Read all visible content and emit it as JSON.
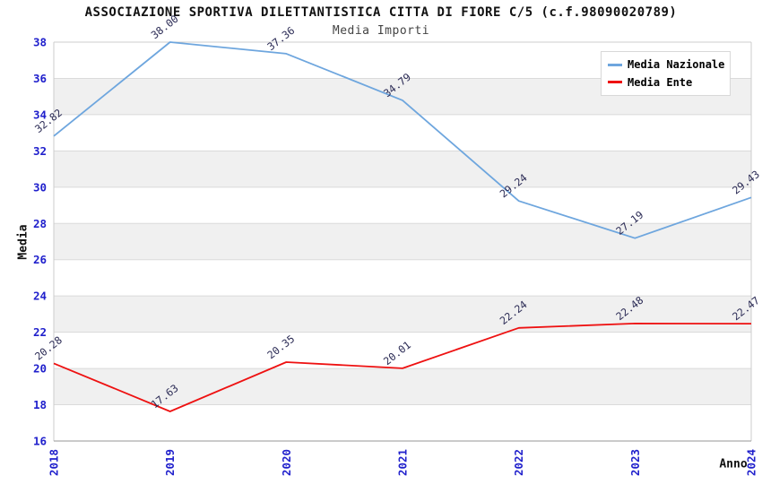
{
  "chart_data": {
    "type": "line",
    "title": "ASSOCIAZIONE SPORTIVA DILETTANTISTICA CITTA DI FIORE C/5 (c.f.98090020789)",
    "subtitle": "Media Importi",
    "xlabel": "Anno",
    "ylabel": "Media",
    "categories": [
      "2018",
      "2019",
      "2020",
      "2021",
      "2022",
      "2023",
      "2024"
    ],
    "series": [
      {
        "name": "Media Nazionale",
        "color": "#6EA6DE",
        "values": [
          32.82,
          38.0,
          37.36,
          34.79,
          29.24,
          27.19,
          29.43
        ]
      },
      {
        "name": "Media Ente",
        "color": "#EE1111",
        "values": [
          20.28,
          17.63,
          20.35,
          20.01,
          22.24,
          22.48,
          22.47
        ]
      }
    ],
    "ylim": [
      16,
      38
    ],
    "ytick_step": 2,
    "grid": true,
    "legend_position": "top-right",
    "value_label_decimals": 2,
    "colors": {
      "tick_label": "#2020CC",
      "value_label": "#2B2B55",
      "band": "#F0F0F0",
      "gridline": "#DADADA",
      "plot_border": "#CCCCCC",
      "axis_line": "#AAAAAA",
      "title": "#111111",
      "subtitle": "#444444",
      "legend_text": "#000000"
    }
  }
}
